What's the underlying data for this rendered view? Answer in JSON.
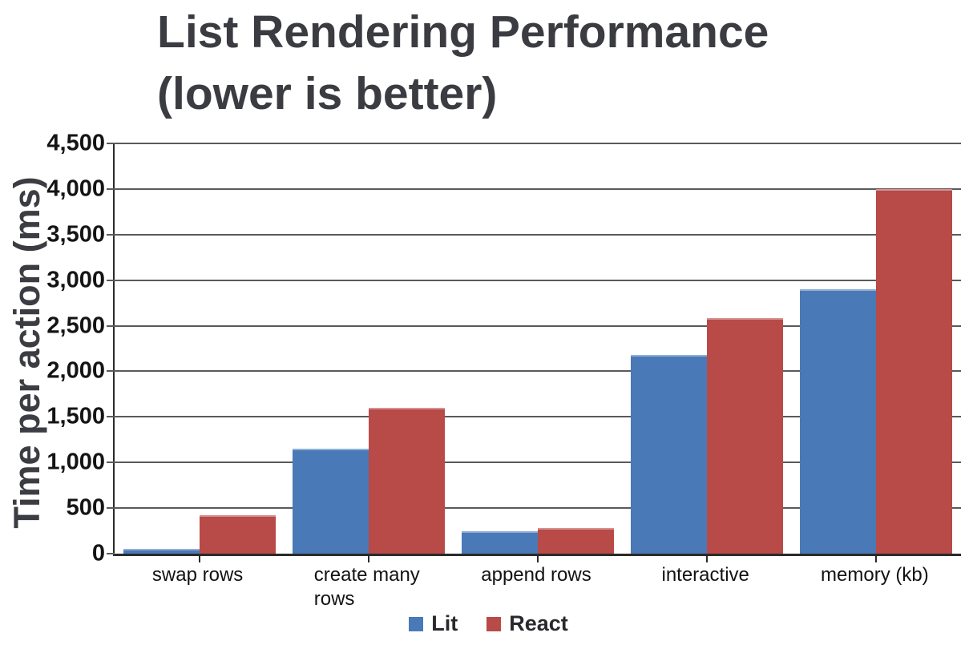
{
  "chart_data": {
    "type": "bar",
    "title": "List Rendering Performance (lower is better)",
    "title_lines": [
      "List Rendering Performance",
      "(lower is better)"
    ],
    "categories": [
      "swap rows",
      "create many\nrows",
      "append rows",
      "interactive",
      "memory (kb)"
    ],
    "series": [
      {
        "name": "Lit",
        "color": "#4a79b8",
        "values": [
          50,
          1150,
          250,
          2180,
          2900
        ]
      },
      {
        "name": "React",
        "color": "#b84a47",
        "values": [
          420,
          1600,
          280,
          2580,
          4000
        ]
      }
    ],
    "xlabel": "",
    "ylabel": "Time per action (ms)",
    "ylim": [
      0,
      4500
    ],
    "ytick_step": 500,
    "grid": true,
    "legend_position": "bottom",
    "legend_labels": [
      "Lit",
      "React"
    ]
  },
  "colors": {
    "background": "#ffffff",
    "title_text": "#3b3c41",
    "axis_line": "#2a2a2a",
    "gridline": "#595a5e",
    "tick_text": "#141414",
    "lit_blue": "#4a79b8",
    "react_red": "#b84a47"
  }
}
